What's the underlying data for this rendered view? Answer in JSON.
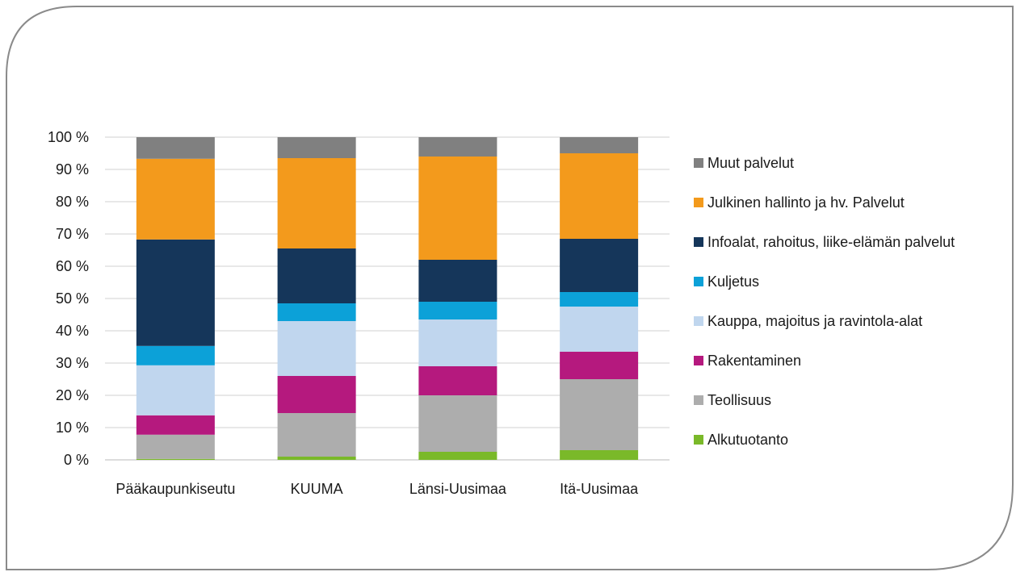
{
  "chart_data": {
    "type": "bar",
    "stacked": true,
    "percent_stacked": true,
    "categories": [
      "Pääkaupunkiseutu",
      "KUUMA",
      "Länsi-Uusimaa",
      "Itä-Uusimaa"
    ],
    "ylim": [
      0,
      100
    ],
    "yticks": [
      "0 %",
      "10 %",
      "20 %",
      "30 %",
      "40 %",
      "50 %",
      "60 %",
      "70 %",
      "80 %",
      "90 %",
      "100 %"
    ],
    "grid": true,
    "legend_position": "right",
    "series": [
      {
        "name": "Alkutuotanto",
        "color": "#7ab929",
        "values": [
          0.3,
          1,
          2.5,
          3
        ]
      },
      {
        "name": "Teollisuus",
        "color": "#adadad",
        "values": [
          7.5,
          13.5,
          17.5,
          22
        ]
      },
      {
        "name": "Rakentaminen",
        "color": "#b5197e",
        "values": [
          6,
          11.5,
          9,
          8.5
        ]
      },
      {
        "name": "Kauppa, majoitus ja ravintola-alat",
        "color": "#c0d6ee",
        "values": [
          15.5,
          17,
          14.5,
          14
        ]
      },
      {
        "name": "Kuljetus",
        "color": "#0ca1d8",
        "values": [
          6,
          5.5,
          5.5,
          4.5
        ]
      },
      {
        "name": "Infoalat, rahoitus, liike-elämän palvelut",
        "color": "#15365a",
        "values": [
          33,
          17,
          13,
          16.5
        ]
      },
      {
        "name": "Julkinen hallinto ja hv. Palvelut",
        "color": "#f39a1c",
        "values": [
          25,
          28,
          32,
          26.5
        ]
      },
      {
        "name": "Muut palvelut",
        "color": "#808080",
        "values": [
          6.7,
          6.5,
          6,
          5
        ]
      }
    ]
  },
  "colors": {
    "frame": "#8a8a8a",
    "gridline": "#d9d9d9",
    "axis": "#c8c8c8"
  }
}
